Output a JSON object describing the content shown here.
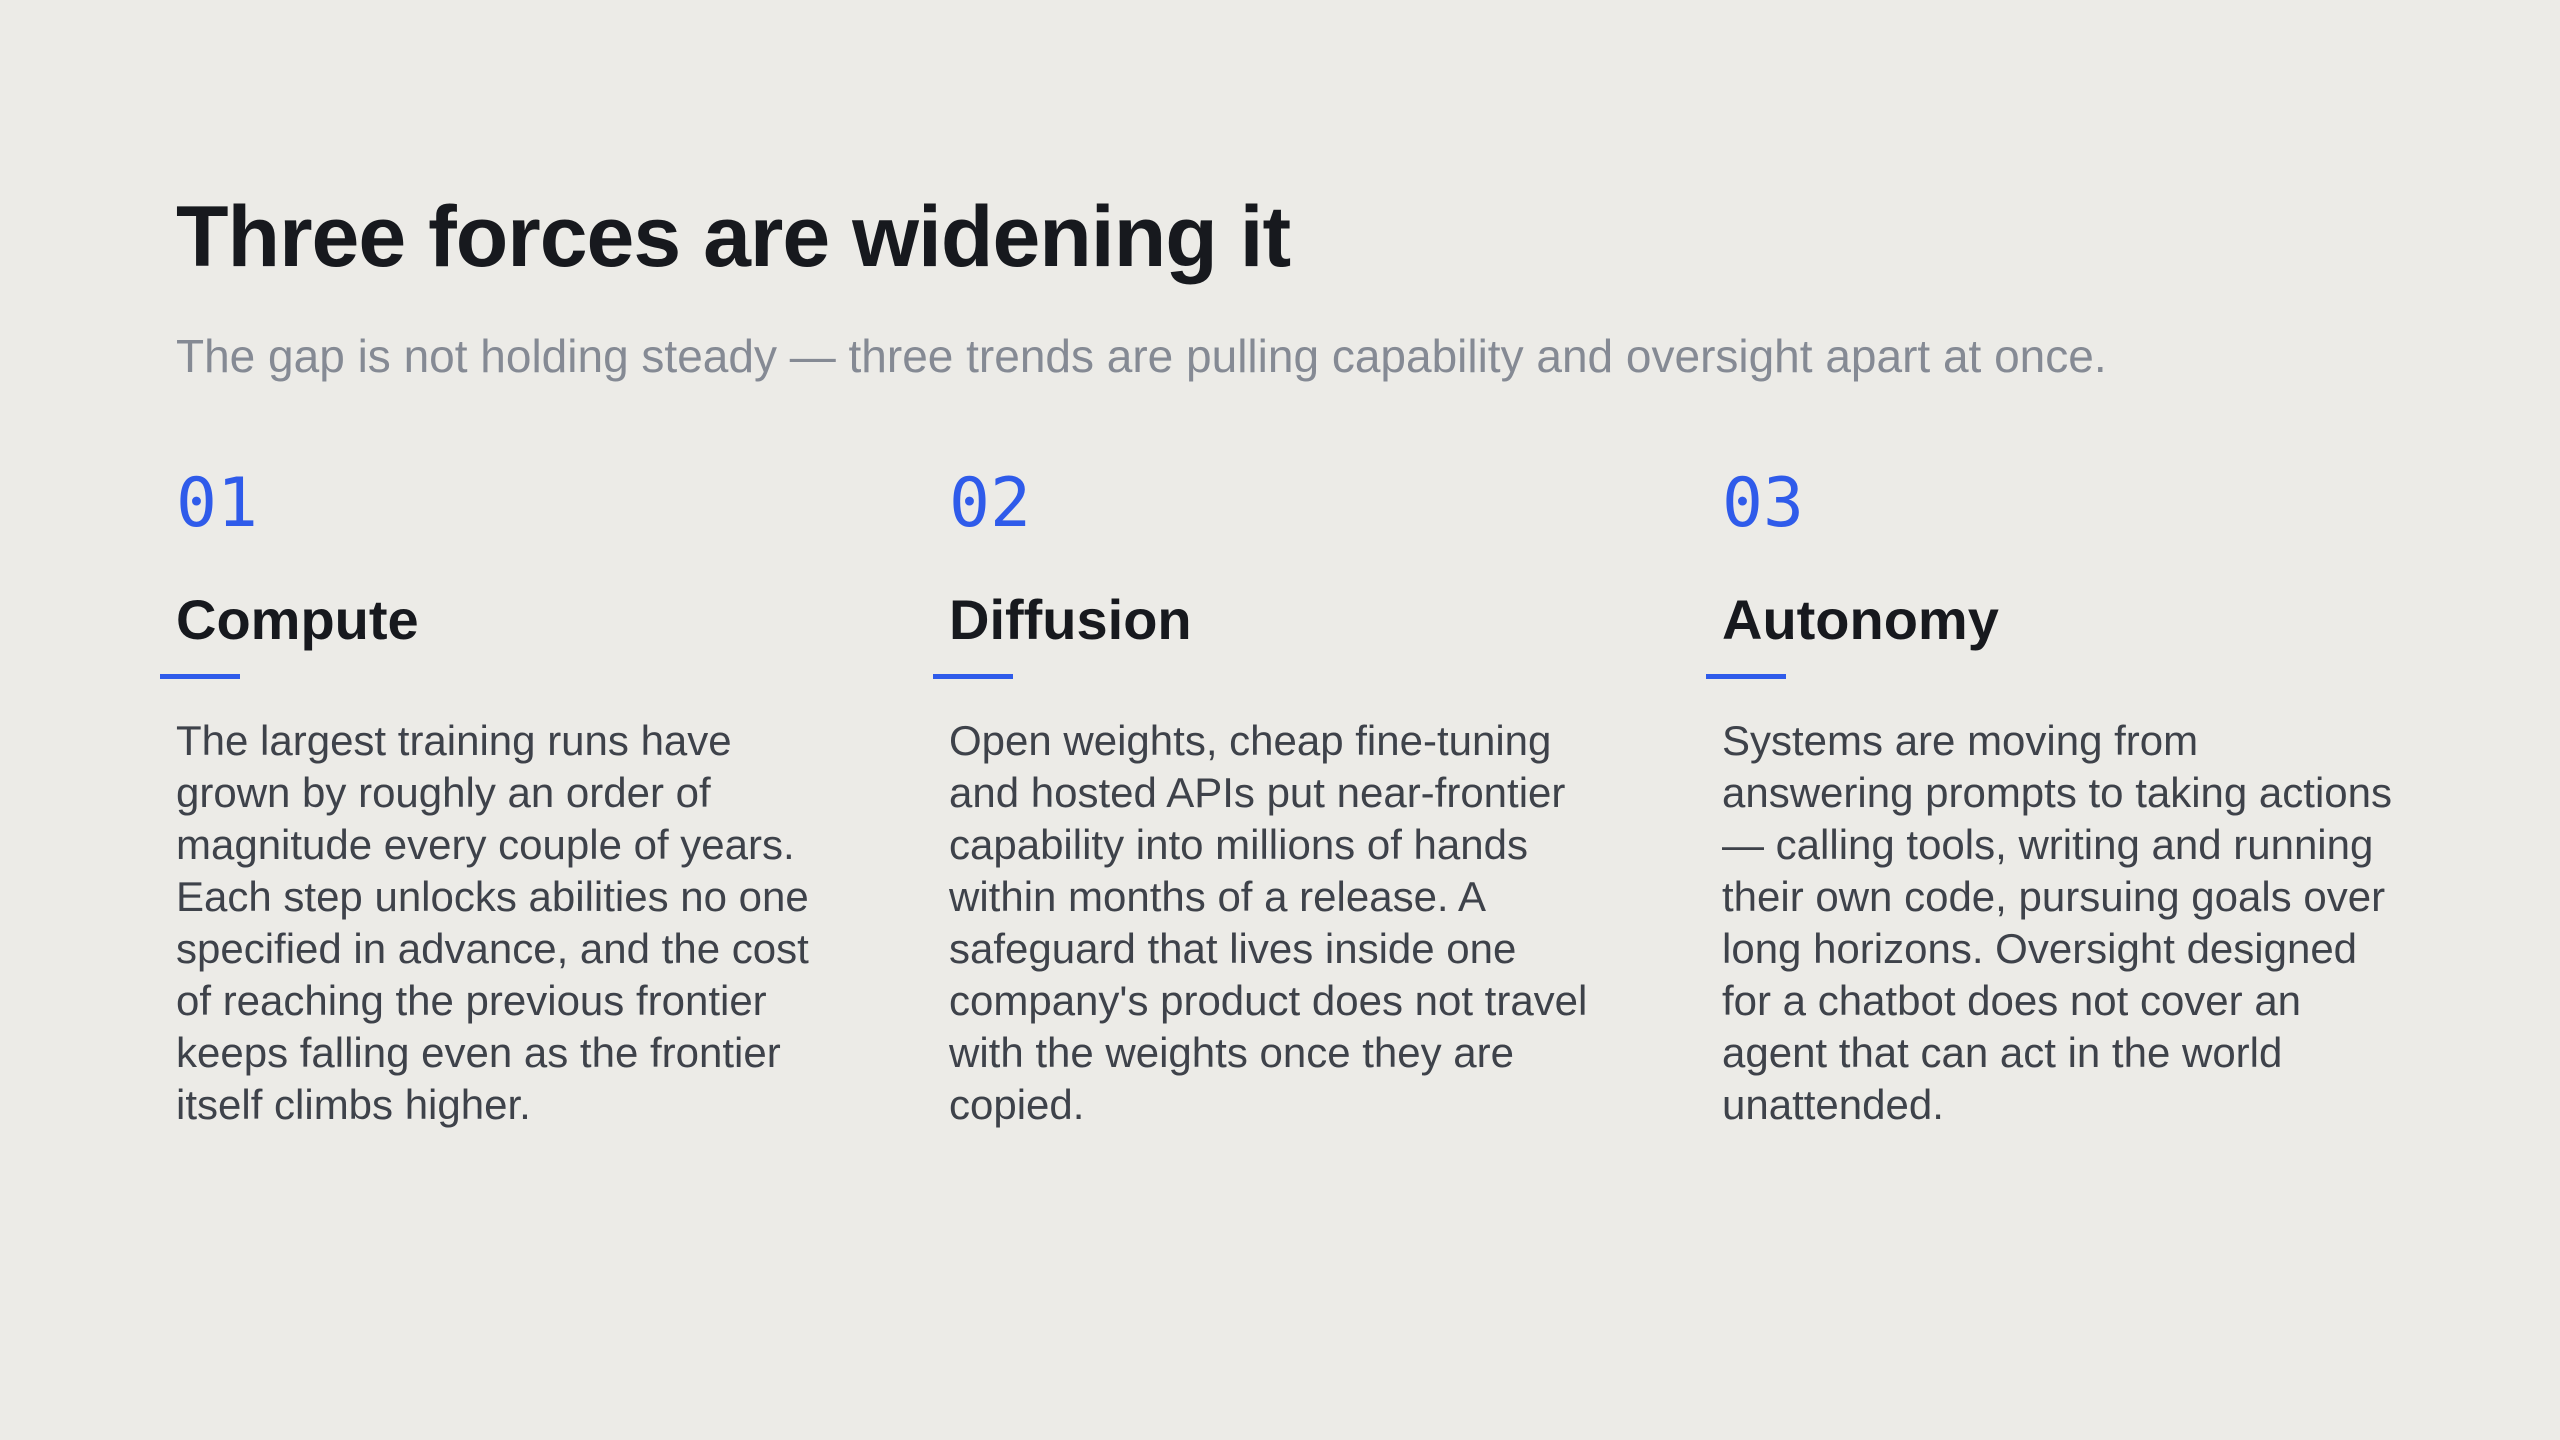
{
  "slide": {
    "title": "Three forces are widening it",
    "subtitle": "The gap is not holding steady — three trends are pulling capability and oversight apart at once."
  },
  "columns": [
    {
      "number": "01",
      "heading": "Compute",
      "body": "The largest training runs have grown by roughly an order of magnitude every couple of years. Each step unlocks abilities no one specified in advance, and the cost of reaching the previous frontier keeps falling even as the frontier itself climbs higher."
    },
    {
      "number": "02",
      "heading": "Diffusion",
      "body": "Open weights, cheap fine-tuning and hosted APIs put near-frontier capability into millions of hands within months of a release. A safeguard that lives inside one company's product does not travel with the weights once they are copied."
    },
    {
      "number": "03",
      "heading": "Autonomy",
      "body": "Systems are moving from answering prompts to taking actions — calling tools, writing and running their own code, pursuing goals over long horizons. Oversight designed for a chatbot does not cover an agent that can act in the world unattended."
    }
  ],
  "colors": {
    "background": "#ECEBE7",
    "accent": "#2F5BEA",
    "title": "#17191E",
    "subtitle": "#858A94",
    "body": "#3E424A"
  }
}
